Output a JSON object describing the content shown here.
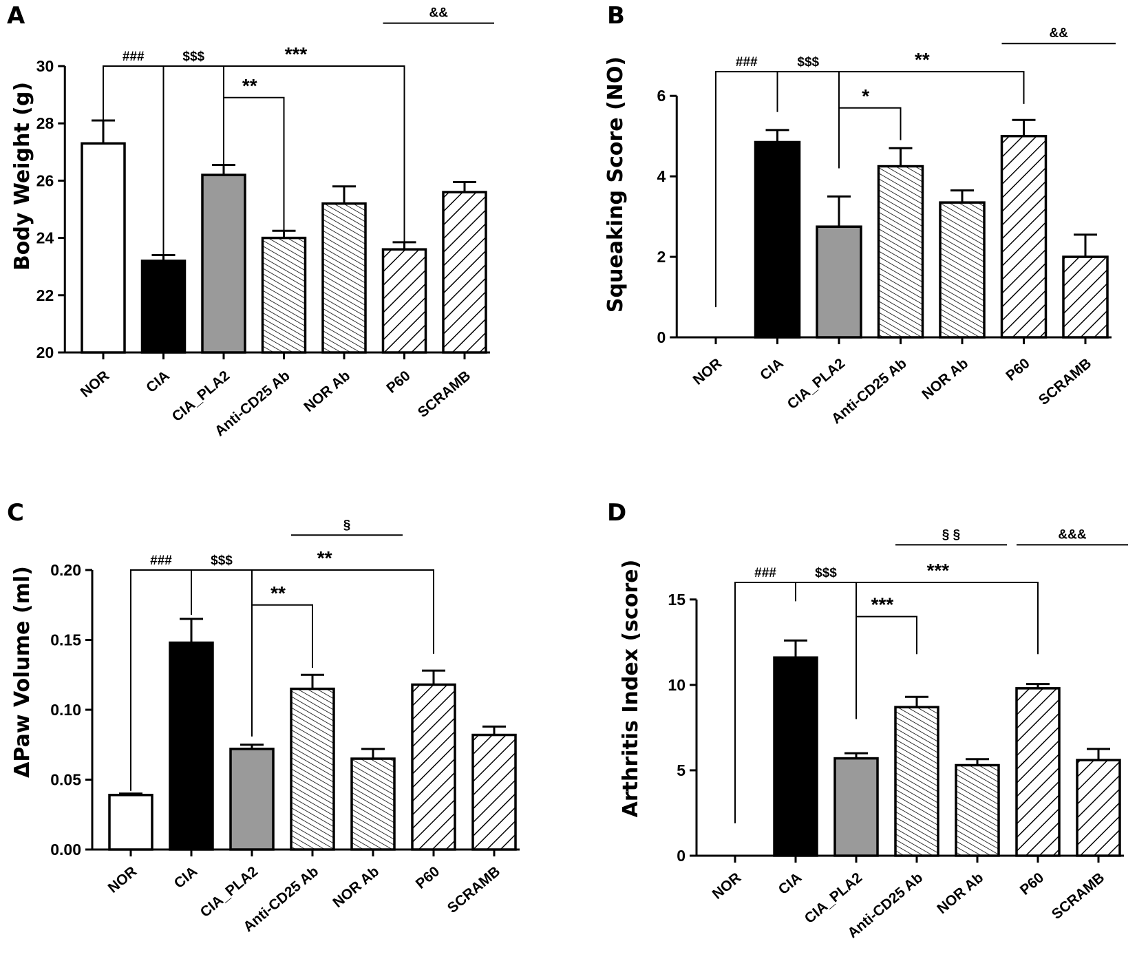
{
  "figure": {
    "colors": {
      "nor": "#ffffff",
      "cia": "#000000",
      "cia_pla2": "#9a9a9a",
      "hatch": "#000000",
      "axis": "#000000"
    }
  },
  "chart_data": [
    {
      "panel": "A",
      "type": "bar",
      "ylabel": "Body Weight (g)",
      "ylim": [
        20,
        30
      ],
      "yticks": [
        20,
        22,
        24,
        26,
        28,
        30
      ],
      "ytick_labels": [
        "20",
        "22",
        "24",
        "26",
        "28",
        "30"
      ],
      "categories": [
        "NOR",
        "CIA",
        "CIA_PLA2",
        "Anti-CD25 Ab",
        "NOR Ab",
        "P60",
        "SCRAMB"
      ],
      "values": [
        27.3,
        23.2,
        26.2,
        24.0,
        25.2,
        23.6,
        25.6
      ],
      "errors": [
        0.8,
        0.2,
        0.35,
        0.25,
        0.6,
        0.25,
        0.35
      ],
      "fills": [
        "white",
        "black",
        "gray",
        "hatch-fine",
        "hatch-fine",
        "hatch-bold",
        "hatch-bold"
      ],
      "brackets": [
        {
          "from": 0,
          "to": 1,
          "label": "###",
          "level": 30.0,
          "drop_to": [
            27.3,
            23.2
          ],
          "size": "small"
        },
        {
          "from": 1,
          "to": 2,
          "label": "$$$",
          "level": 30.0,
          "drop_to": [
            23.2,
            26.2
          ],
          "size": "small"
        },
        {
          "from": 2,
          "to": 5,
          "label": "***",
          "level": 30.0,
          "drop_to": [
            26.2,
            23.6
          ],
          "size": "large"
        },
        {
          "from": 2,
          "to": 3,
          "label": "**",
          "level": 28.9,
          "drop_to": [
            26.2,
            24.0
          ],
          "size": "large"
        }
      ],
      "lines": [
        {
          "from": 5,
          "to": 6,
          "label": "&&",
          "level": 31.5
        }
      ]
    },
    {
      "panel": "B",
      "type": "bar",
      "ylabel": "Squeaking Score (NO)",
      "ylim": [
        0,
        6.5
      ],
      "yticks": [
        0,
        2,
        4,
        6
      ],
      "ytick_labels": [
        "0",
        "2",
        "4",
        "6"
      ],
      "categories": [
        "NOR",
        "CIA",
        "CIA_PLA2",
        "Anti-CD25 Ab",
        "NOR Ab",
        "P60",
        "SCRAMB"
      ],
      "values": [
        0,
        4.85,
        2.75,
        4.25,
        3.35,
        5.0,
        2.0
      ],
      "errors": [
        0,
        0.3,
        0.75,
        0.45,
        0.3,
        0.4,
        0.55
      ],
      "fills": [
        "white",
        "black",
        "gray",
        "hatch-fine",
        "hatch-fine",
        "hatch-bold",
        "hatch-bold"
      ],
      "brackets": [
        {
          "from": 0,
          "to": 1,
          "label": "###",
          "level": 6.6,
          "drop_to": [
            0.75,
            5.6
          ],
          "size": "small"
        },
        {
          "from": 1,
          "to": 2,
          "label": "$$$",
          "level": 6.6,
          "drop_to": [
            5.6,
            4.2
          ],
          "size": "small"
        },
        {
          "from": 2,
          "to": 5,
          "label": "**",
          "level": 6.6,
          "drop_to": [
            4.2,
            5.8
          ],
          "size": "large"
        },
        {
          "from": 2,
          "to": 3,
          "label": "*",
          "level": 5.7,
          "drop_to": [
            4.2,
            4.9
          ],
          "size": "large"
        }
      ],
      "lines": [
        {
          "from": 5,
          "to": 6,
          "label": "&&",
          "level": 7.3
        }
      ]
    },
    {
      "panel": "C",
      "type": "bar",
      "ylabel": "ΔPaw Volume (ml)",
      "ylim": [
        0,
        0.2
      ],
      "yticks": [
        0,
        0.05,
        0.1,
        0.15,
        0.2
      ],
      "ytick_labels": [
        "0.00",
        "0.05",
        "0.10",
        "0.15",
        "0.20"
      ],
      "categories": [
        "NOR",
        "CIA",
        "CIA_PLA2",
        "Anti-CD25 Ab",
        "NOR Ab",
        "P60",
        "SCRAMB"
      ],
      "values": [
        0.039,
        0.148,
        0.072,
        0.115,
        0.065,
        0.118,
        0.082
      ],
      "errors": [
        0.001,
        0.017,
        0.003,
        0.01,
        0.007,
        0.01,
        0.006
      ],
      "fills": [
        "white",
        "black",
        "gray",
        "hatch-fine",
        "hatch-fine",
        "hatch-bold",
        "hatch-bold"
      ],
      "brackets": [
        {
          "from": 0,
          "to": 1,
          "label": "###",
          "level": 0.2,
          "drop_to": [
            0.042,
            0.168
          ],
          "size": "small"
        },
        {
          "from": 1,
          "to": 2,
          "label": "$$$",
          "level": 0.2,
          "drop_to": [
            0.168,
            0.081
          ],
          "size": "small"
        },
        {
          "from": 2,
          "to": 5,
          "label": "**",
          "level": 0.2,
          "drop_to": [
            0.081,
            0.14
          ],
          "size": "large"
        },
        {
          "from": 2,
          "to": 3,
          "label": "**",
          "level": 0.175,
          "drop_to": [
            0.081,
            0.13
          ],
          "size": "large"
        }
      ],
      "lines": [
        {
          "from": 3,
          "to": 4,
          "label": "§",
          "level": 0.225
        }
      ]
    },
    {
      "panel": "D",
      "type": "bar",
      "ylabel": "Arthritis Index (score)",
      "ylim": [
        0,
        16
      ],
      "yticks": [
        0,
        5,
        10,
        15
      ],
      "ytick_labels": [
        "0",
        "5",
        "10",
        "15"
      ],
      "categories": [
        "NOR",
        "CIA",
        "CIA_PLA2",
        "Anti-CD25 Ab",
        "NOR Ab",
        "P60",
        "SCRAMB"
      ],
      "values": [
        0,
        11.6,
        5.7,
        8.7,
        5.3,
        9.8,
        5.6
      ],
      "errors": [
        0,
        1.0,
        0.3,
        0.6,
        0.35,
        0.25,
        0.65
      ],
      "fills": [
        "white",
        "black",
        "gray",
        "hatch-fine",
        "hatch-fine",
        "hatch-bold",
        "hatch-bold"
      ],
      "brackets": [
        {
          "from": 0,
          "to": 1,
          "label": "###",
          "level": 16.0,
          "drop_to": [
            1.9,
            14.9
          ],
          "size": "small"
        },
        {
          "from": 1,
          "to": 2,
          "label": "$$$",
          "level": 16.0,
          "drop_to": [
            14.9,
            8.0
          ],
          "size": "small"
        },
        {
          "from": 2,
          "to": 5,
          "label": "***",
          "level": 16.0,
          "drop_to": [
            8.0,
            11.8
          ],
          "size": "large"
        },
        {
          "from": 2,
          "to": 3,
          "label": "***",
          "level": 14.0,
          "drop_to": [
            8.0,
            11.8
          ],
          "size": "large"
        }
      ],
      "lines": [
        {
          "from": 3,
          "to": 4,
          "label": "§ §",
          "level": 18.2
        },
        {
          "from": 5,
          "to": 6,
          "label": "&&&",
          "level": 18.2
        }
      ]
    }
  ]
}
